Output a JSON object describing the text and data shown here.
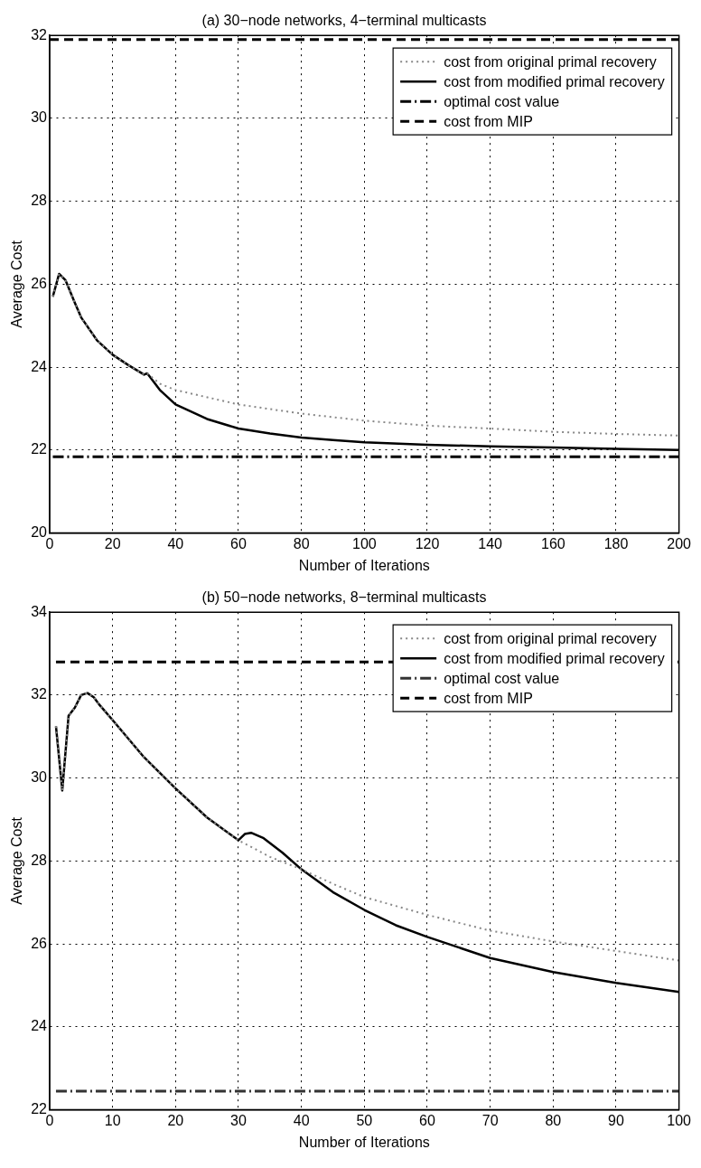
{
  "chart_data": [
    {
      "type": "line",
      "title": "(a) 30−node networks, 4−terminal multicasts",
      "xlabel": "Number of Iterations",
      "ylabel": "Average Cost",
      "xlim": [
        0,
        200
      ],
      "xticks": [
        0,
        20,
        40,
        60,
        80,
        100,
        120,
        140,
        160,
        180,
        200
      ],
      "ylim": [
        20,
        32
      ],
      "yticks": [
        20,
        22,
        24,
        26,
        28,
        30,
        32
      ],
      "grid": true,
      "legend": "top right",
      "marker": "none",
      "series": [
        {
          "name": "cost from original primal recovery",
          "color": "#888888",
          "line_style": "dotted",
          "x": [
            1,
            3,
            5,
            8,
            10,
            15,
            20,
            25,
            30,
            31,
            35,
            40,
            60,
            80,
            100,
            120,
            140,
            160,
            180,
            200
          ],
          "values": [
            25.7,
            26.25,
            26.1,
            25.55,
            25.2,
            24.65,
            24.3,
            24.05,
            23.82,
            23.85,
            23.6,
            23.45,
            23.1,
            22.88,
            22.71,
            22.59,
            22.52,
            22.44,
            22.39,
            22.35
          ]
        },
        {
          "name": "cost from modified primal recovery",
          "color": "#000000",
          "line_style": "solid",
          "x": [
            1,
            3,
            5,
            8,
            10,
            15,
            20,
            25,
            30,
            31,
            32,
            35,
            40,
            50,
            60,
            70,
            80,
            90,
            100,
            120,
            140,
            160,
            180,
            200
          ],
          "values": [
            25.7,
            26.25,
            26.1,
            25.55,
            25.2,
            24.65,
            24.3,
            24.05,
            23.82,
            23.85,
            23.75,
            23.45,
            23.1,
            22.75,
            22.52,
            22.4,
            22.3,
            22.24,
            22.19,
            22.13,
            22.09,
            22.06,
            22.03,
            22.0
          ]
        },
        {
          "name": "optimal cost value",
          "color": "#000000",
          "line_style": "dashdot",
          "x": [
            1,
            200
          ],
          "values": [
            21.84,
            21.84
          ]
        },
        {
          "name": "cost from MIP",
          "color": "#000000",
          "line_style": "dashed",
          "x": [
            0,
            200
          ],
          "values": [
            31.9,
            31.9
          ]
        }
      ]
    },
    {
      "type": "line",
      "title": "(b) 50−node networks, 8−terminal multicasts",
      "xlabel": "Number of Iterations",
      "ylabel": "Average Cost",
      "xlim": [
        0,
        100
      ],
      "xticks": [
        0,
        10,
        20,
        30,
        40,
        50,
        60,
        70,
        80,
        90,
        100
      ],
      "ylim": [
        22,
        34
      ],
      "yticks": [
        22,
        24,
        26,
        28,
        30,
        32,
        34
      ],
      "grid": true,
      "legend": "top right",
      "marker": "none",
      "series": [
        {
          "name": "cost from original primal recovery",
          "color": "#888888",
          "line_style": "dotted",
          "x": [
            1,
            2,
            3,
            4,
            5,
            6,
            7,
            8,
            10,
            15,
            20,
            25,
            30,
            35,
            40,
            45,
            50,
            60,
            70,
            80,
            90,
            100
          ],
          "values": [
            31.25,
            29.7,
            31.5,
            31.7,
            32.0,
            32.05,
            31.95,
            31.75,
            31.4,
            30.5,
            29.75,
            29.05,
            28.5,
            28.1,
            27.8,
            27.45,
            27.13,
            26.7,
            26.32,
            26.06,
            25.83,
            25.6
          ]
        },
        {
          "name": "cost from modified primal recovery",
          "color": "#000000",
          "line_style": "solid",
          "x": [
            1,
            2,
            3,
            4,
            5,
            6,
            7,
            8,
            10,
            15,
            20,
            25,
            30,
            31,
            32,
            34,
            37,
            40,
            45,
            50,
            55,
            60,
            70,
            80,
            90,
            100
          ],
          "values": [
            31.25,
            29.7,
            31.5,
            31.7,
            32.0,
            32.05,
            31.95,
            31.75,
            31.4,
            30.5,
            29.75,
            29.05,
            28.5,
            28.65,
            28.68,
            28.55,
            28.2,
            27.8,
            27.25,
            26.82,
            26.45,
            26.17,
            25.66,
            25.32,
            25.06,
            24.84
          ]
        },
        {
          "name": "optimal cost value",
          "color": "#333333",
          "line_style": "dashdot",
          "x": [
            1,
            100
          ],
          "values": [
            22.45,
            22.45
          ]
        },
        {
          "name": "cost from MIP",
          "color": "#000000",
          "line_style": "dashed",
          "x": [
            1,
            100
          ],
          "values": [
            32.8,
            32.8
          ]
        }
      ]
    }
  ]
}
